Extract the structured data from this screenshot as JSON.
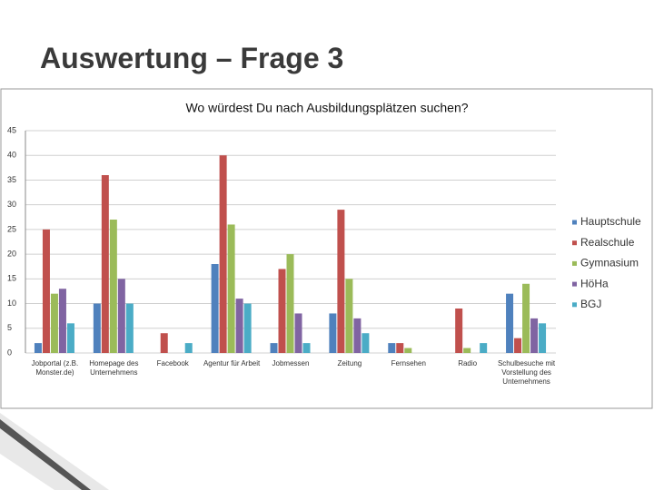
{
  "slide_title": "Auswertung – Frage 3",
  "chart_data": {
    "type": "bar",
    "title": "Wo würdest Du nach Ausbildungsplätzen suchen?",
    "categories": [
      "Jobportal (z.B. Monster.de)",
      "Homepage des Unternehmens",
      "Facebook",
      "Agentur für Arbeit",
      "Jobmessen",
      "Zeitung",
      "Fernsehen",
      "Radio",
      "Schulbesuche mit Vorstellung des Unternehmens"
    ],
    "series": [
      {
        "name": "Hauptschule",
        "color": "#4f81bd",
        "values": [
          2,
          10,
          0,
          18,
          2,
          8,
          2,
          0,
          12
        ]
      },
      {
        "name": "Realschule",
        "color": "#c0504d",
        "values": [
          25,
          36,
          4,
          40,
          17,
          29,
          2,
          9,
          3
        ]
      },
      {
        "name": "Gymnasium",
        "color": "#9bbb59",
        "values": [
          12,
          27,
          0,
          26,
          20,
          15,
          1,
          1,
          14
        ]
      },
      {
        "name": "HöHa",
        "color": "#8064a2",
        "values": [
          13,
          15,
          0,
          11,
          8,
          7,
          0,
          0,
          7
        ]
      },
      {
        "name": "BGJ",
        "color": "#4bacc6",
        "values": [
          6,
          10,
          2,
          10,
          2,
          4,
          0,
          2,
          6
        ]
      }
    ],
    "ylim": [
      0,
      45
    ],
    "yticks": [
      0,
      5,
      10,
      15,
      20,
      25,
      30,
      35,
      40,
      45
    ],
    "grid": true,
    "legend": "right"
  }
}
